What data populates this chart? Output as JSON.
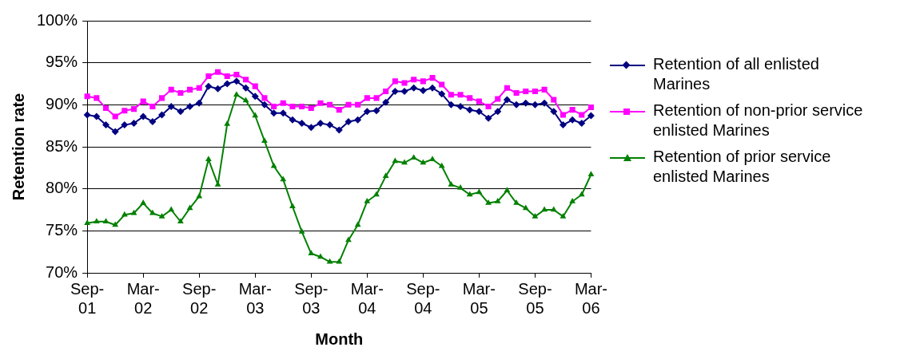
{
  "chart_data": {
    "type": "line",
    "xlabel": "Month",
    "ylabel": "Retention rate",
    "categories": [
      "Sep-01",
      null,
      null,
      null,
      null,
      null,
      "Mar-02",
      null,
      null,
      null,
      null,
      null,
      "Sep-02",
      null,
      null,
      null,
      null,
      null,
      "Mar-03",
      null,
      null,
      null,
      null,
      null,
      "Sep-03",
      null,
      null,
      null,
      null,
      null,
      "Mar-04",
      null,
      null,
      null,
      null,
      null,
      "Sep-04",
      null,
      null,
      null,
      null,
      null,
      "Mar-05",
      null,
      null,
      null,
      null,
      null,
      "Sep-05",
      null,
      null,
      null,
      null,
      null,
      "Mar-06"
    ],
    "series": [
      {
        "name": "Retention of all enlisted Marines",
        "color": "#000080",
        "marker": "diamond",
        "values": [
          88.8,
          88.6,
          87.6,
          86.8,
          87.6,
          87.8,
          88.6,
          88.0,
          88.8,
          89.8,
          89.2,
          89.8,
          90.2,
          92.2,
          91.9,
          92.5,
          92.8,
          92.0,
          91.0,
          90.0,
          89.0,
          89.0,
          88.2,
          87.8,
          87.3,
          87.8,
          87.6,
          87.0,
          88.0,
          88.2,
          89.2,
          89.3,
          90.3,
          91.6,
          91.6,
          92.0,
          91.7,
          92.0,
          91.3,
          90.0,
          89.8,
          89.4,
          89.2,
          88.4,
          89.2,
          90.6,
          90.0,
          90.2,
          90.0,
          90.2,
          89.2,
          87.6,
          88.2,
          87.8,
          88.7
        ]
      },
      {
        "name": "Retention of non-prior service enlisted Marines",
        "color": "#ff00ff",
        "marker": "square",
        "values": [
          91.0,
          90.8,
          89.6,
          88.6,
          89.3,
          89.5,
          90.4,
          89.8,
          90.8,
          91.8,
          91.4,
          91.8,
          92.0,
          93.4,
          93.9,
          93.4,
          93.6,
          93.0,
          92.2,
          90.8,
          89.8,
          90.2,
          89.8,
          89.8,
          89.6,
          90.2,
          90.0,
          89.4,
          90.0,
          90.0,
          90.8,
          90.8,
          91.6,
          92.8,
          92.6,
          93.0,
          92.8,
          93.2,
          92.4,
          91.2,
          91.2,
          90.8,
          90.4,
          89.8,
          90.7,
          92.0,
          91.4,
          91.6,
          91.6,
          91.8,
          90.6,
          88.8,
          89.4,
          88.8,
          89.7
        ]
      },
      {
        "name": "Retention of prior service enlisted Marines",
        "color": "#008000",
        "marker": "triangle",
        "values": [
          75.9,
          76.1,
          76.1,
          75.7,
          76.9,
          77.1,
          78.3,
          77.1,
          76.7,
          77.5,
          76.1,
          77.7,
          79.1,
          83.5,
          80.5,
          87.7,
          91.2,
          90.5,
          88.7,
          85.7,
          82.7,
          81.1,
          77.9,
          74.9,
          72.3,
          71.9,
          71.3,
          71.3,
          73.9,
          75.7,
          78.5,
          79.3,
          81.5,
          83.3,
          83.1,
          83.7,
          83.1,
          83.5,
          82.7,
          80.5,
          80.1,
          79.3,
          79.6,
          78.3,
          78.5,
          79.8,
          78.3,
          77.7,
          76.7,
          77.5,
          77.5,
          76.7,
          78.5,
          79.3,
          81.7
        ]
      }
    ],
    "ylim": [
      70,
      100
    ],
    "yticks": [
      {
        "value": 70,
        "label": "70%"
      },
      {
        "value": 75,
        "label": "75%"
      },
      {
        "value": 80,
        "label": "80%"
      },
      {
        "value": 85,
        "label": "85%"
      },
      {
        "value": 90,
        "label": "90%"
      },
      {
        "value": 95,
        "label": "95%"
      },
      {
        "value": 100,
        "label": "100%"
      }
    ],
    "grid": "y",
    "legend": "right",
    "line_style": "solid"
  }
}
